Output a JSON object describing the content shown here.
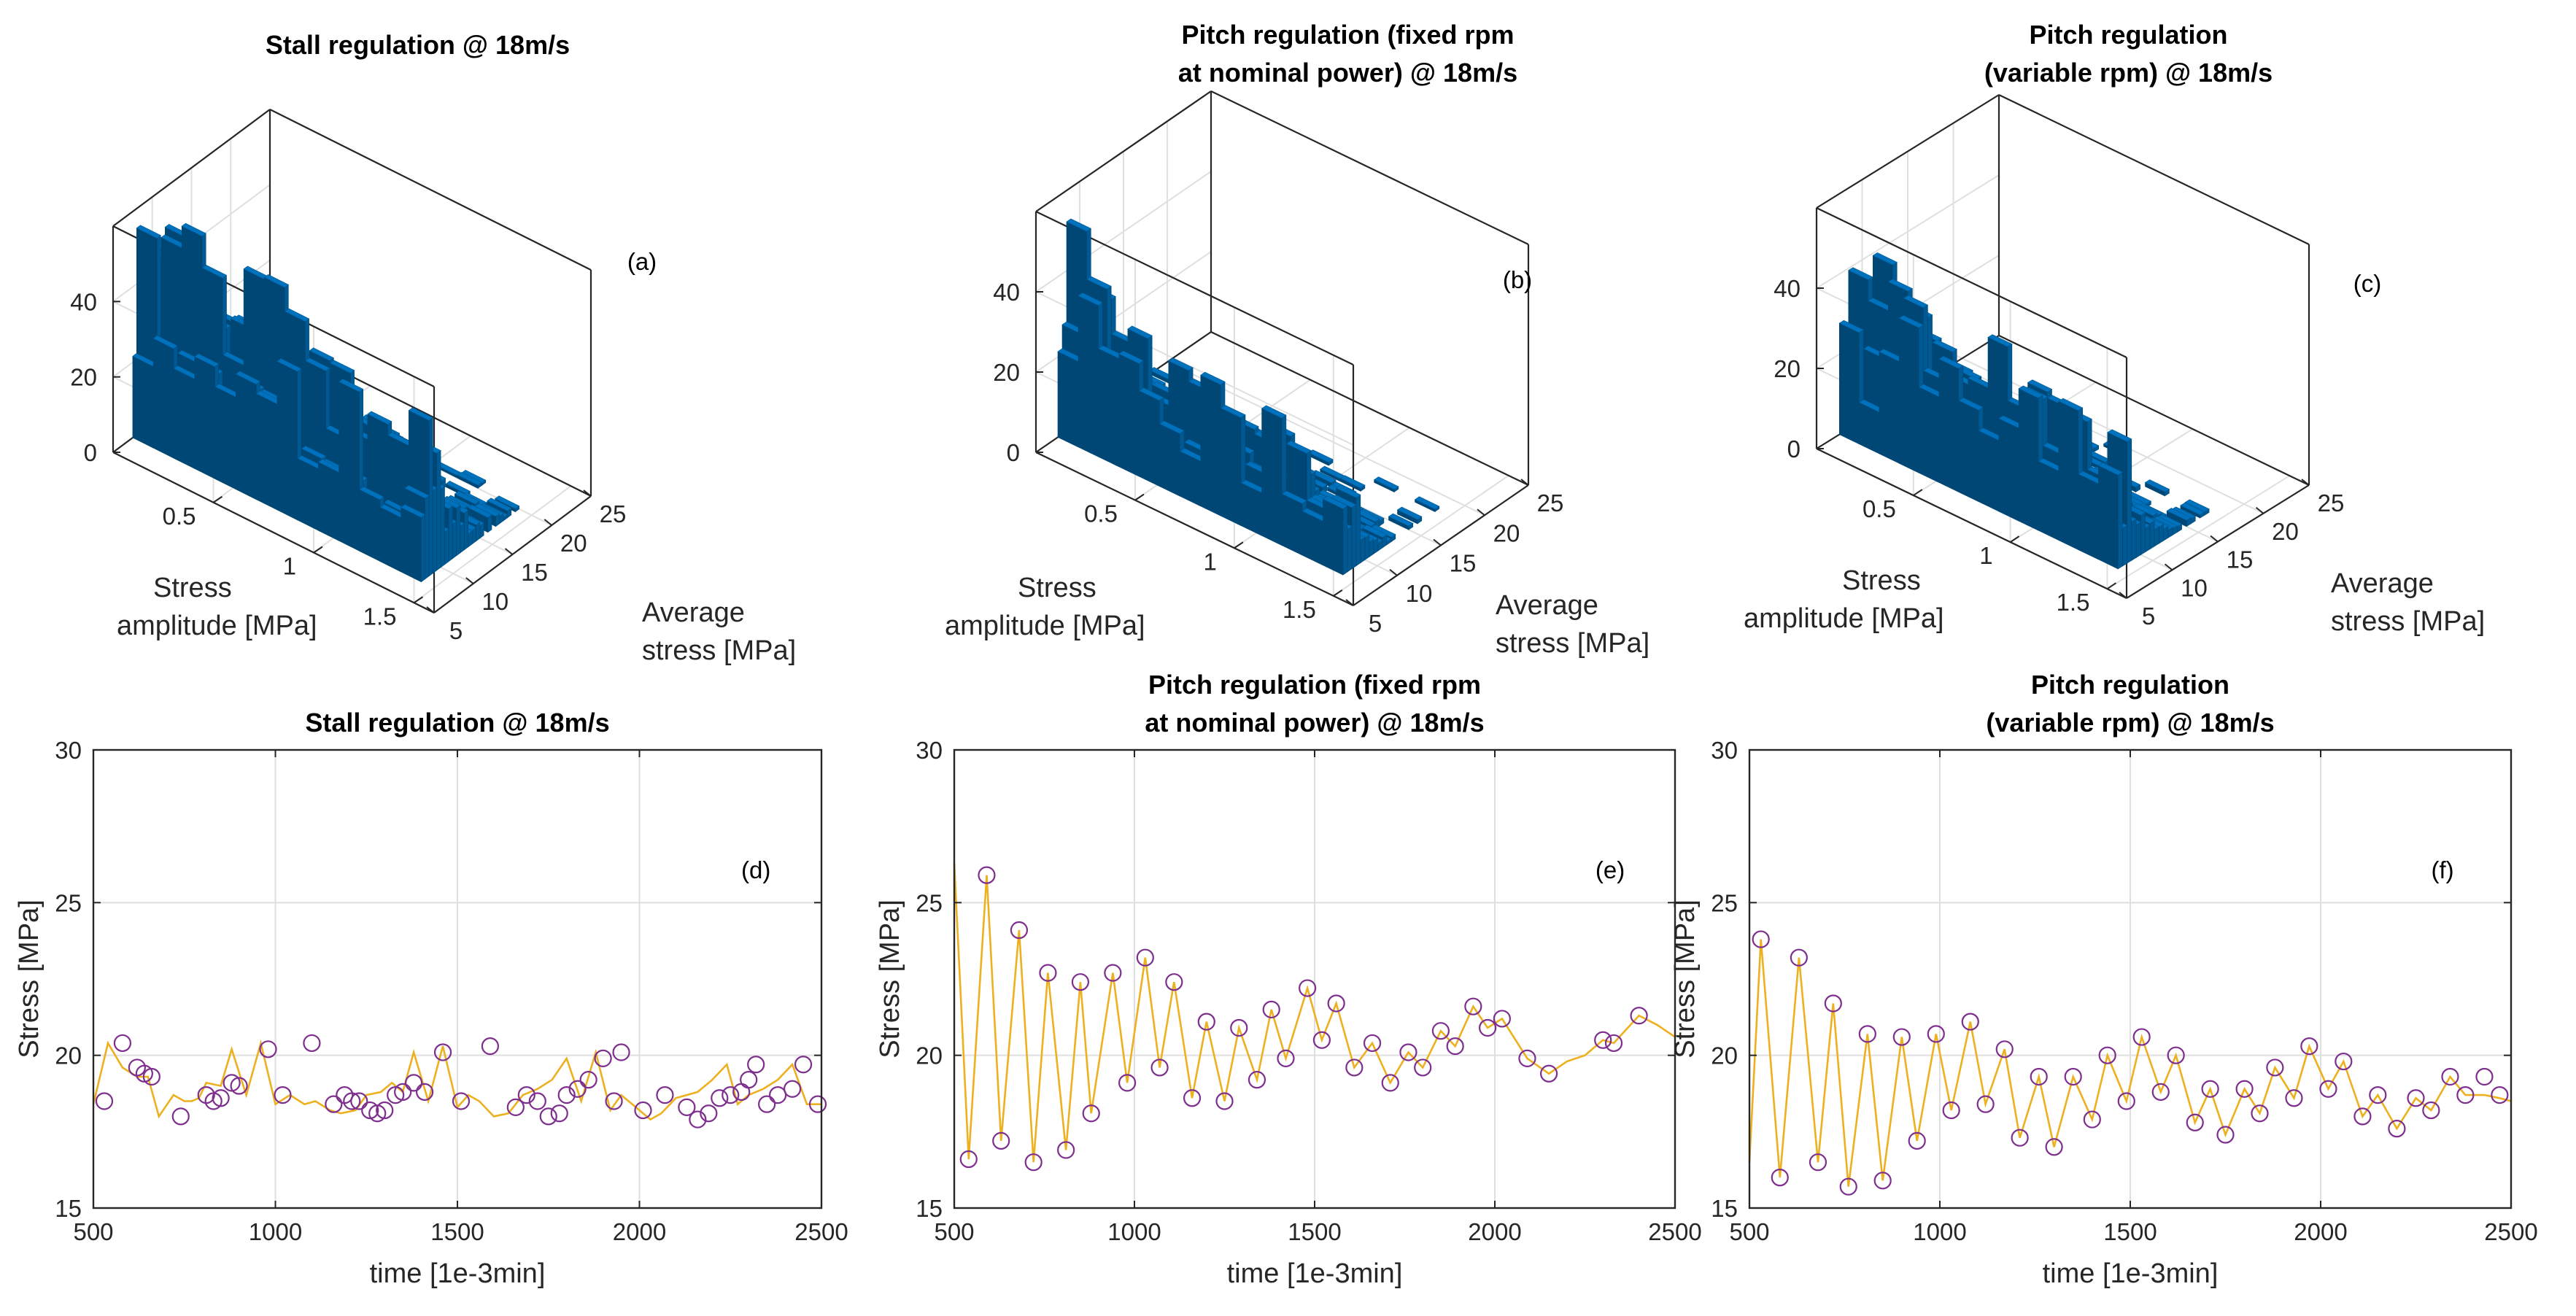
{
  "colors": {
    "bars": "#0072BD",
    "line": "#EDB120",
    "markers": "#7E2F8E",
    "grid": "#dfdfdf",
    "axes": "#262626"
  },
  "chart_data": [
    {
      "type": "bar3d",
      "panel": "a",
      "title_lines": [
        "Stall regulation @ 18m/s"
      ],
      "annotation": "(a)",
      "xlabel_lines": [
        "Stress",
        "amplitude [MPa]"
      ],
      "ylabel_lines": [
        "Average",
        "stress [MPa]"
      ],
      "x_ticks": [
        "0.5",
        "1",
        "1.5"
      ],
      "y_ticks": [
        "5",
        "10",
        "15",
        "20",
        "25"
      ],
      "z_ticks": [
        "0",
        "20",
        "40"
      ],
      "xlim": [
        0,
        1.6
      ],
      "ylim": [
        5,
        25
      ],
      "zlim": [
        0,
        60
      ],
      "peak_height": 65,
      "average_stress_range": [
        7.5,
        21.5
      ],
      "bins_average_stress": 28,
      "bins_stress_amplitude": 14,
      "decay": 0.13,
      "tail_level": 0.1,
      "seed": 11
    },
    {
      "type": "bar3d",
      "panel": "b",
      "title_lines": [
        "Pitch regulation (fixed rpm",
        "at nominal power) @ 18m/s"
      ],
      "annotation": "(b)",
      "xlabel_lines": [
        "Stress",
        "amplitude [MPa]"
      ],
      "ylabel_lines": [
        "Average",
        "stress [MPa]"
      ],
      "x_ticks": [
        "0.5",
        "1",
        "1.5"
      ],
      "y_ticks": [
        "5",
        "10",
        "15",
        "20",
        "25"
      ],
      "z_ticks": [
        "0",
        "20",
        "40"
      ],
      "xlim": [
        0,
        1.6
      ],
      "ylim": [
        5,
        25
      ],
      "zlim": [
        0,
        60
      ],
      "peak_height": 60,
      "average_stress_range": [
        7.5,
        22.5
      ],
      "bins_average_stress": 30,
      "bins_stress_amplitude": 14,
      "decay": 0.26,
      "tail_level": 0.04,
      "seed": 23
    },
    {
      "type": "bar3d",
      "panel": "c",
      "title_lines": [
        "Pitch regulation",
        "(variable rpm) @ 18m/s"
      ],
      "annotation": "(c)",
      "xlabel_lines": [
        "Stress",
        "amplitude [MPa]"
      ],
      "ylabel_lines": [
        "Average",
        "stress [MPa]"
      ],
      "x_ticks": [
        "0.5",
        "1",
        "1.5"
      ],
      "y_ticks": [
        "5",
        "10",
        "15",
        "20",
        "25"
      ],
      "z_ticks": [
        "0",
        "20",
        "40"
      ],
      "xlim": [
        0,
        1.6
      ],
      "ylim": [
        5,
        25
      ],
      "zlim": [
        0,
        60
      ],
      "peak_height": 62,
      "average_stress_range": [
        7.5,
        22.0
      ],
      "bins_average_stress": 29,
      "bins_stress_amplitude": 14,
      "decay": 0.22,
      "tail_level": 0.05,
      "seed": 37
    },
    {
      "type": "line",
      "panel": "d",
      "title_lines": [
        "Stall regulation @ 18m/s"
      ],
      "annotation": "(d)",
      "xlabel": "time [1e-3min]",
      "ylabel": "Stress [MPa]",
      "xlim": [
        500,
        2500
      ],
      "ylim": [
        15,
        30
      ],
      "x_ticks": [
        500,
        1000,
        1500,
        2000,
        2500
      ],
      "y_ticks": [
        15,
        20,
        25,
        30
      ],
      "x": [
        500,
        540,
        580,
        620,
        650,
        680,
        720,
        750,
        770,
        790,
        810,
        850,
        880,
        920,
        960,
        1000,
        1040,
        1080,
        1110,
        1150,
        1180,
        1220,
        1250,
        1290,
        1320,
        1350,
        1380,
        1420,
        1460,
        1500,
        1530,
        1560,
        1600,
        1640,
        1680,
        1720,
        1760,
        1800,
        1840,
        1880,
        1920,
        1950,
        1990,
        2030,
        2060,
        2100,
        2130,
        2160,
        2200,
        2240,
        2270,
        2300,
        2340,
        2380,
        2420,
        2460,
        2500
      ],
      "y": [
        18.4,
        20.4,
        19.6,
        19.3,
        19.3,
        18.0,
        18.7,
        18.5,
        18.5,
        18.6,
        19.1,
        19.0,
        20.2,
        18.7,
        20.4,
        18.4,
        18.7,
        18.4,
        18.5,
        18.2,
        18.1,
        18.2,
        18.7,
        18.8,
        19.1,
        18.8,
        20.1,
        18.5,
        20.3,
        18.3,
        18.7,
        18.5,
        18.0,
        18.1,
        18.7,
        18.9,
        19.2,
        19.9,
        18.5,
        20.1,
        18.2,
        18.7,
        18.3,
        17.9,
        18.1,
        18.6,
        18.7,
        18.8,
        19.2,
        19.7,
        18.4,
        18.7,
        18.9,
        19.2,
        19.7,
        18.4,
        18.4
      ],
      "markers_x": [
        530,
        580,
        620,
        640,
        660,
        740,
        810,
        830,
        850,
        880,
        900,
        980,
        1020,
        1100,
        1160,
        1190,
        1210,
        1230,
        1260,
        1280,
        1300,
        1330,
        1350,
        1380,
        1410,
        1460,
        1510,
        1590,
        1660,
        1690,
        1720,
        1750,
        1780,
        1800,
        1830,
        1860,
        1900,
        1930,
        1950,
        2010,
        2070,
        2130,
        2160,
        2190,
        2220,
        2250,
        2280,
        2300,
        2320,
        2350,
        2380,
        2420,
        2450,
        2490
      ],
      "markers_y": [
        18.5,
        20.4,
        19.6,
        19.4,
        19.3,
        18.0,
        18.7,
        18.5,
        18.6,
        19.1,
        19.0,
        20.2,
        18.7,
        20.4,
        18.4,
        18.7,
        18.5,
        18.5,
        18.2,
        18.1,
        18.2,
        18.7,
        18.8,
        19.1,
        18.8,
        20.1,
        18.5,
        20.3,
        18.3,
        18.7,
        18.5,
        18.0,
        18.1,
        18.7,
        18.9,
        19.2,
        19.9,
        18.5,
        20.1,
        18.2,
        18.7,
        18.3,
        17.9,
        18.1,
        18.6,
        18.7,
        18.8,
        19.2,
        19.7,
        18.4,
        18.7,
        18.9,
        19.7,
        18.4
      ]
    },
    {
      "type": "line",
      "panel": "e",
      "title_lines": [
        "Pitch regulation (fixed rpm",
        "at nominal power) @ 18m/s"
      ],
      "annotation": "(e)",
      "xlabel": "time [1e-3min]",
      "ylabel": "Stress [MPa]",
      "xlim": [
        500,
        2500
      ],
      "ylim": [
        15,
        30
      ],
      "x_ticks": [
        500,
        1000,
        1500,
        2000,
        2500
      ],
      "y_ticks": [
        15,
        20,
        25,
        30
      ],
      "x": [
        500,
        540,
        590,
        630,
        680,
        720,
        760,
        810,
        850,
        880,
        940,
        980,
        1030,
        1070,
        1110,
        1160,
        1200,
        1250,
        1290,
        1340,
        1380,
        1420,
        1480,
        1520,
        1560,
        1610,
        1660,
        1710,
        1760,
        1800,
        1850,
        1890,
        1940,
        1980,
        2020,
        2090,
        2150,
        2200,
        2250,
        2300,
        2330,
        2400,
        2450,
        2500
      ],
      "y": [
        26.3,
        16.6,
        25.9,
        17.2,
        24.1,
        16.5,
        22.7,
        16.9,
        22.4,
        18.1,
        22.7,
        19.1,
        23.2,
        19.6,
        22.4,
        18.6,
        21.1,
        18.5,
        20.9,
        19.2,
        21.5,
        19.9,
        22.2,
        20.5,
        21.7,
        19.6,
        20.4,
        19.1,
        20.1,
        19.6,
        20.8,
        20.3,
        21.6,
        20.9,
        21.2,
        19.9,
        19.4,
        19.8,
        20.0,
        20.5,
        20.4,
        21.3,
        21.0,
        20.6
      ],
      "markers_x": [
        540,
        590,
        630,
        680,
        720,
        760,
        810,
        850,
        880,
        940,
        980,
        1030,
        1070,
        1110,
        1160,
        1200,
        1250,
        1290,
        1340,
        1380,
        1420,
        1480,
        1520,
        1560,
        1610,
        1660,
        1710,
        1760,
        1800,
        1850,
        1890,
        1940,
        1980,
        2020,
        2090,
        2150,
        2300,
        2330,
        2400
      ],
      "markers_y": [
        16.6,
        25.9,
        17.2,
        24.1,
        16.5,
        22.7,
        16.9,
        22.4,
        18.1,
        22.7,
        19.1,
        23.2,
        19.6,
        22.4,
        18.6,
        21.1,
        18.5,
        20.9,
        19.2,
        21.5,
        19.9,
        22.2,
        20.5,
        21.7,
        19.6,
        20.4,
        19.1,
        20.1,
        19.6,
        20.8,
        20.3,
        21.6,
        20.9,
        21.2,
        19.9,
        19.4,
        20.5,
        20.4,
        21.3
      ]
    },
    {
      "type": "line",
      "panel": "f",
      "title_lines": [
        "Pitch regulation",
        "(variable rpm) @ 18m/s"
      ],
      "annotation": "(f)",
      "xlabel": "time [1e-3min]",
      "ylabel": "Stress [MPa]",
      "xlim": [
        500,
        2500
      ],
      "ylim": [
        15,
        30
      ],
      "x_ticks": [
        500,
        1000,
        1500,
        2000,
        2500
      ],
      "y_ticks": [
        15,
        20,
        25,
        30
      ],
      "x": [
        500,
        530,
        580,
        630,
        680,
        720,
        760,
        810,
        850,
        900,
        940,
        990,
        1030,
        1080,
        1120,
        1170,
        1210,
        1260,
        1300,
        1350,
        1400,
        1440,
        1490,
        1530,
        1580,
        1620,
        1670,
        1710,
        1750,
        1800,
        1840,
        1880,
        1930,
        1970,
        2020,
        2060,
        2110,
        2150,
        2200,
        2250,
        2290,
        2340,
        2380,
        2430,
        2470,
        2500
      ],
      "y": [
        16.5,
        23.8,
        16.0,
        23.2,
        16.5,
        21.7,
        15.7,
        20.7,
        15.9,
        20.6,
        17.2,
        20.7,
        18.2,
        21.1,
        18.4,
        20.2,
        17.3,
        19.3,
        17.0,
        19.3,
        17.9,
        20.0,
        18.5,
        20.6,
        18.8,
        20.0,
        17.8,
        18.9,
        17.4,
        18.9,
        18.1,
        19.6,
        18.6,
        20.3,
        18.9,
        19.8,
        18.0,
        18.7,
        17.6,
        18.6,
        18.2,
        19.3,
        18.7,
        18.7,
        18.6,
        18.5
      ],
      "markers_x": [
        530,
        580,
        630,
        680,
        720,
        760,
        810,
        850,
        900,
        940,
        990,
        1030,
        1080,
        1120,
        1170,
        1210,
        1260,
        1300,
        1350,
        1400,
        1440,
        1490,
        1530,
        1580,
        1620,
        1670,
        1710,
        1750,
        1800,
        1840,
        1880,
        1930,
        1970,
        2020,
        2060,
        2110,
        2150,
        2200,
        2250,
        2290,
        2340,
        2380,
        2430,
        2470
      ],
      "markers_y": [
        23.8,
        16.0,
        23.2,
        16.5,
        21.7,
        15.7,
        20.7,
        15.9,
        20.6,
        17.2,
        20.7,
        18.2,
        21.1,
        18.4,
        20.2,
        17.3,
        19.3,
        17.0,
        19.3,
        17.9,
        20.0,
        18.5,
        20.6,
        18.8,
        20.0,
        17.8,
        18.9,
        17.4,
        18.9,
        18.1,
        19.6,
        18.6,
        20.3,
        18.9,
        19.8,
        18.0,
        18.7,
        17.6,
        18.6,
        18.2,
        19.3,
        18.7,
        19.3,
        18.7
      ]
    }
  ]
}
